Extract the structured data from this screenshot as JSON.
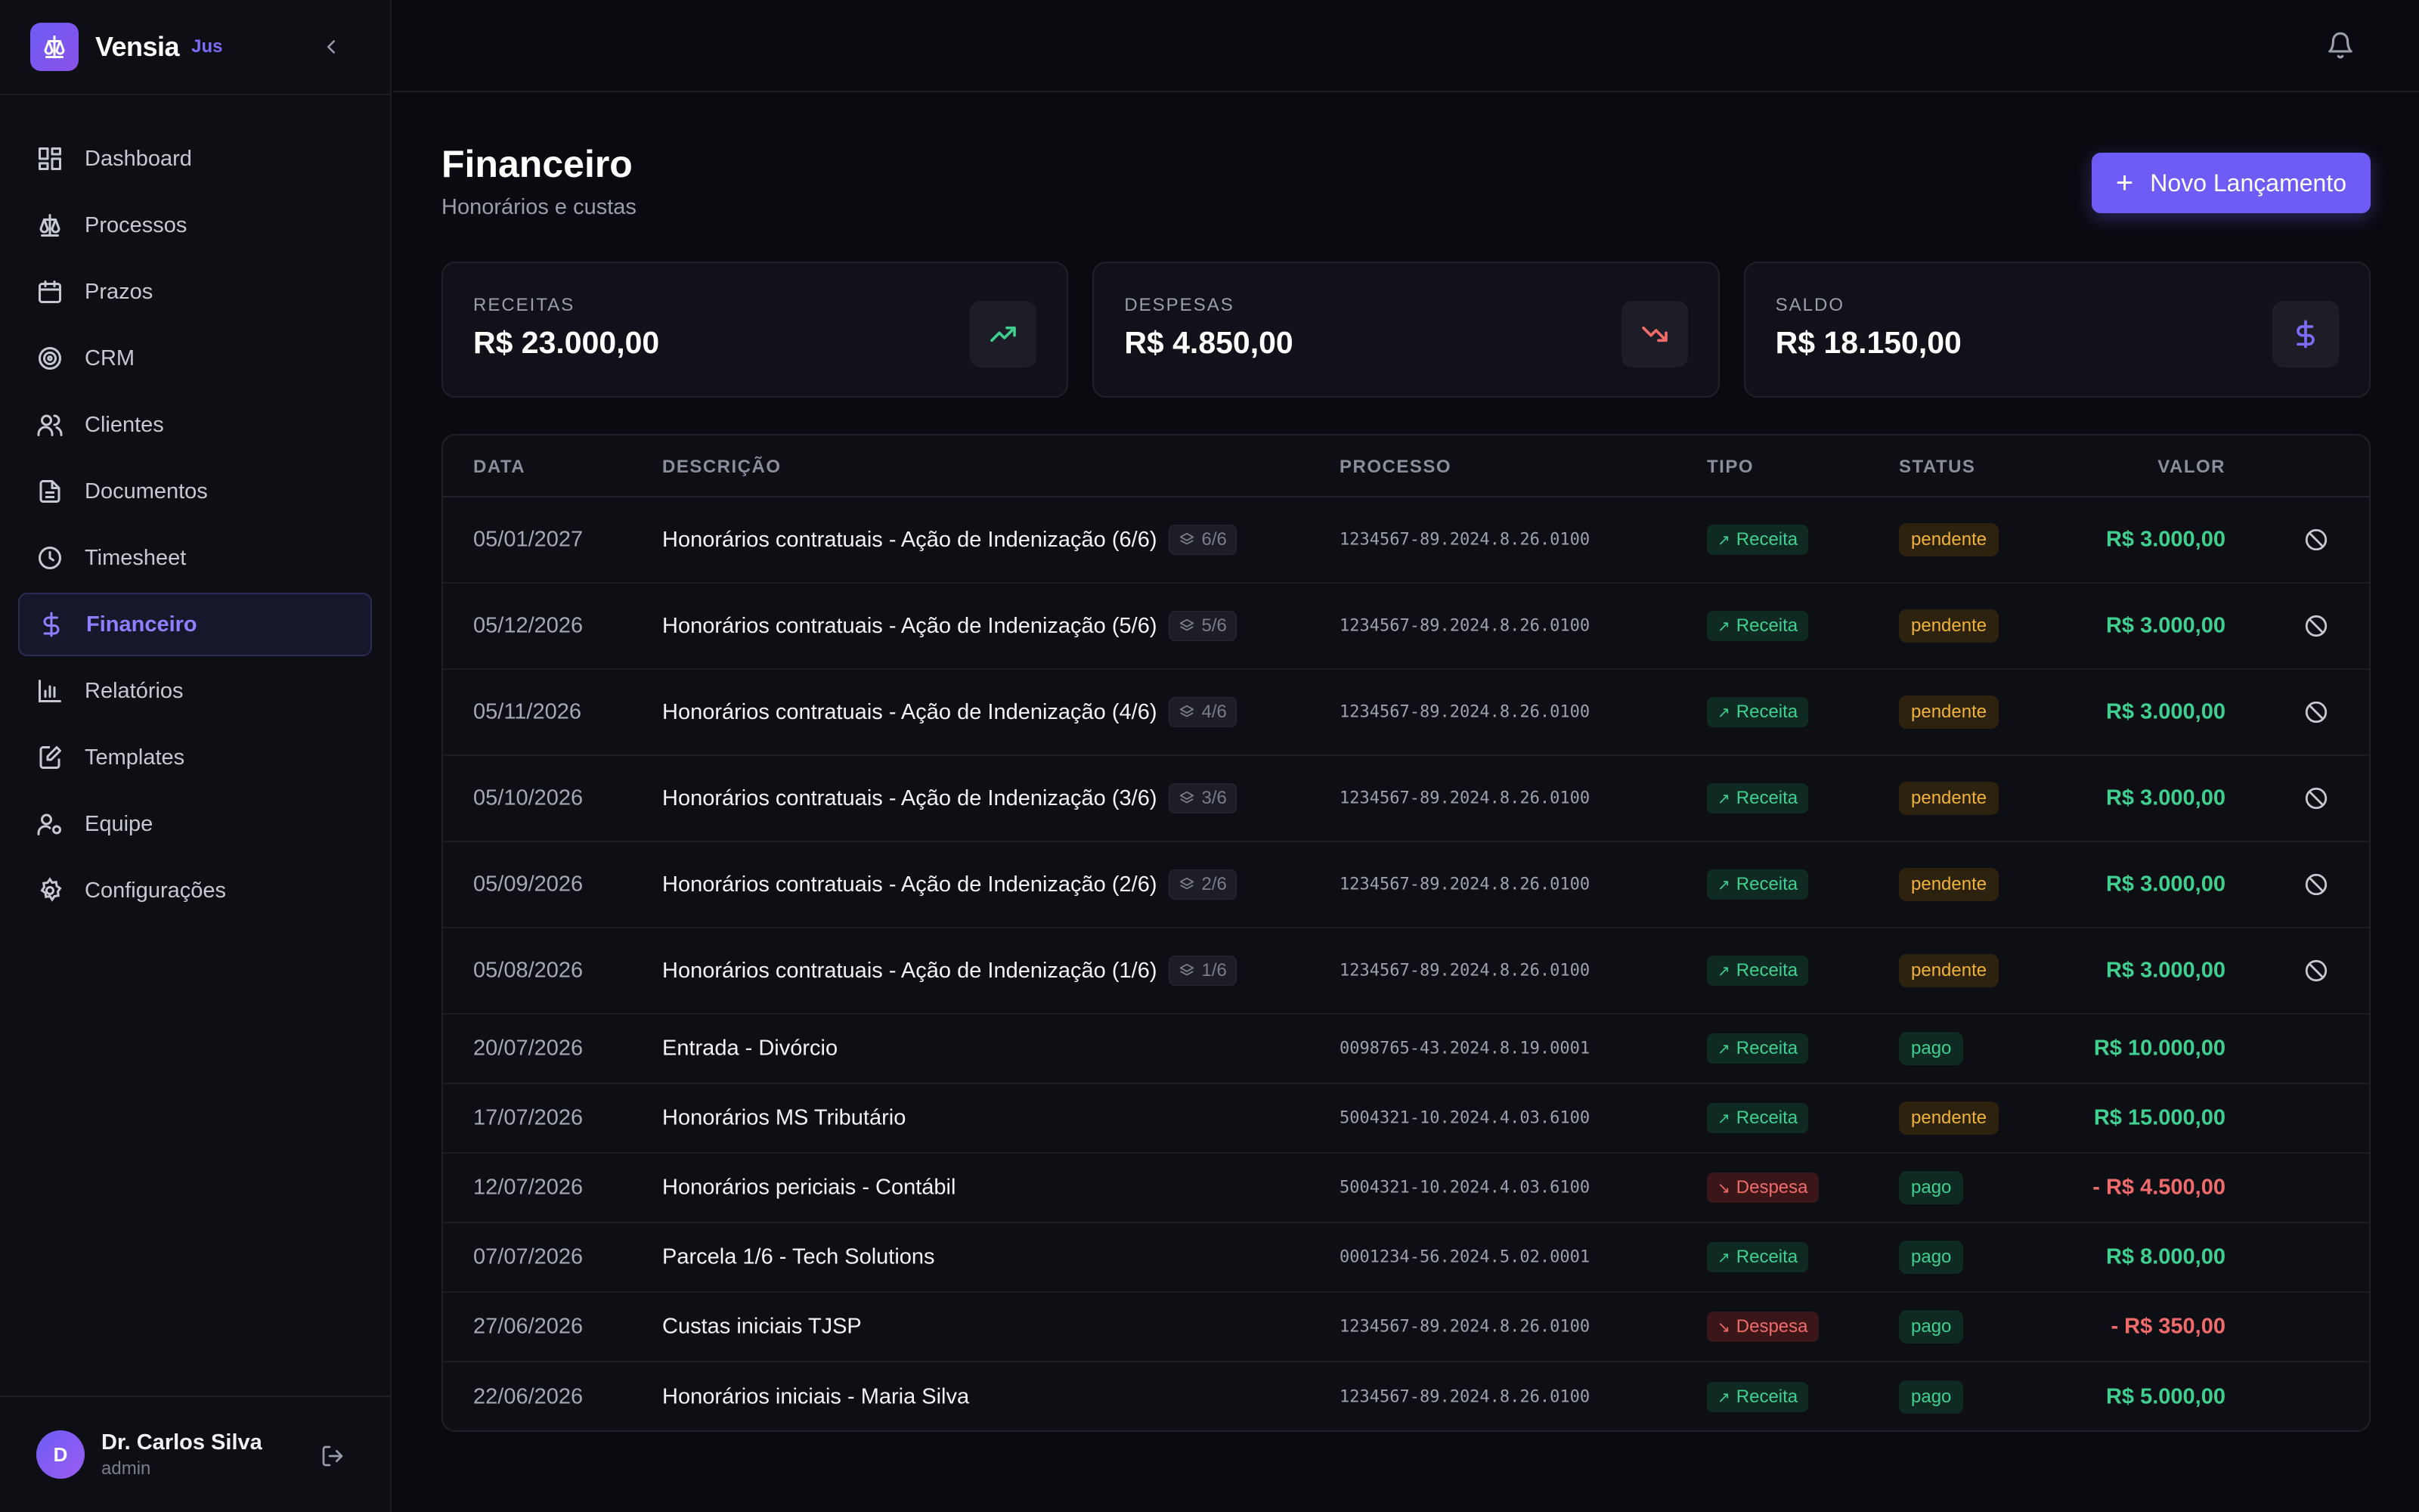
{
  "app": {
    "name": "Vensia",
    "tag": "Jus"
  },
  "sidebar": {
    "items": [
      {
        "label": "Dashboard",
        "icon": "dashboard-icon",
        "active": false
      },
      {
        "label": "Processos",
        "icon": "scale-icon",
        "active": false
      },
      {
        "label": "Prazos",
        "icon": "calendar-icon",
        "active": false
      },
      {
        "label": "CRM",
        "icon": "target-icon",
        "active": false
      },
      {
        "label": "Clientes",
        "icon": "users-icon",
        "active": false
      },
      {
        "label": "Documentos",
        "icon": "document-icon",
        "active": false
      },
      {
        "label": "Timesheet",
        "icon": "clock-icon",
        "active": false
      },
      {
        "label": "Financeiro",
        "icon": "dollar-icon",
        "active": true
      },
      {
        "label": "Relatórios",
        "icon": "bar-chart-icon",
        "active": false
      },
      {
        "label": "Templates",
        "icon": "edit-document-icon",
        "active": false
      },
      {
        "label": "Equipe",
        "icon": "user-gear-icon",
        "active": false
      },
      {
        "label": "Configurações",
        "icon": "gear-icon",
        "active": false
      }
    ]
  },
  "user": {
    "initial": "D",
    "name": "Dr. Carlos Silva",
    "role": "admin"
  },
  "page": {
    "title": "Financeiro",
    "subtitle": "Honorários e custas",
    "new_button": "Novo Lançamento"
  },
  "stats": [
    {
      "label": "RECEITAS",
      "value": "R$ 23.000,00",
      "icon": "trending-up-icon",
      "color": "#3fcf8e"
    },
    {
      "label": "DESPESAS",
      "value": "R$ 4.850,00",
      "icon": "trending-down-icon",
      "color": "#f26b6b"
    },
    {
      "label": "SALDO",
      "value": "R$ 18.150,00",
      "icon": "dollar-icon",
      "color": "#7c6cf6"
    }
  ],
  "table": {
    "headers": {
      "data": "DATA",
      "descricao": "DESCRIÇÃO",
      "processo": "PROCESSO",
      "tipo": "TIPO",
      "status": "STATUS",
      "valor": "VALOR"
    },
    "rows": [
      {
        "date": "05/01/2027",
        "desc": "Honorários contratuais - Ação de Indenização (6/6)",
        "installment": "6/6",
        "proc": "1234567-89.2024.8.26.0100",
        "tipo": "Receita",
        "status": "pendente",
        "valor": "R$ 3.000,00",
        "cancel": true
      },
      {
        "date": "05/12/2026",
        "desc": "Honorários contratuais - Ação de Indenização (5/6)",
        "installment": "5/6",
        "proc": "1234567-89.2024.8.26.0100",
        "tipo": "Receita",
        "status": "pendente",
        "valor": "R$ 3.000,00",
        "cancel": true
      },
      {
        "date": "05/11/2026",
        "desc": "Honorários contratuais - Ação de Indenização (4/6)",
        "installment": "4/6",
        "proc": "1234567-89.2024.8.26.0100",
        "tipo": "Receita",
        "status": "pendente",
        "valor": "R$ 3.000,00",
        "cancel": true
      },
      {
        "date": "05/10/2026",
        "desc": "Honorários contratuais - Ação de Indenização (3/6)",
        "installment": "3/6",
        "proc": "1234567-89.2024.8.26.0100",
        "tipo": "Receita",
        "status": "pendente",
        "valor": "R$ 3.000,00",
        "cancel": true
      },
      {
        "date": "05/09/2026",
        "desc": "Honorários contratuais - Ação de Indenização (2/6)",
        "installment": "2/6",
        "proc": "1234567-89.2024.8.26.0100",
        "tipo": "Receita",
        "status": "pendente",
        "valor": "R$ 3.000,00",
        "cancel": true
      },
      {
        "date": "05/08/2026",
        "desc": "Honorários contratuais - Ação de Indenização (1/6)",
        "installment": "1/6",
        "proc": "1234567-89.2024.8.26.0100",
        "tipo": "Receita",
        "status": "pendente",
        "valor": "R$ 3.000,00",
        "cancel": true
      },
      {
        "date": "20/07/2026",
        "desc": "Entrada - Divórcio",
        "installment": "",
        "proc": "0098765-43.2024.8.19.0001",
        "tipo": "Receita",
        "status": "pago",
        "valor": "R$ 10.000,00",
        "cancel": false
      },
      {
        "date": "17/07/2026",
        "desc": "Honorários MS Tributário",
        "installment": "",
        "proc": "5004321-10.2024.4.03.6100",
        "tipo": "Receita",
        "status": "pendente",
        "valor": "R$ 15.000,00",
        "cancel": false
      },
      {
        "date": "12/07/2026",
        "desc": "Honorários periciais - Contábil",
        "installment": "",
        "proc": "5004321-10.2024.4.03.6100",
        "tipo": "Despesa",
        "status": "pago",
        "valor": "- R$ 4.500,00",
        "cancel": false
      },
      {
        "date": "07/07/2026",
        "desc": "Parcela 1/6 - Tech Solutions",
        "installment": "",
        "proc": "0001234-56.2024.5.02.0001",
        "tipo": "Receita",
        "status": "pago",
        "valor": "R$ 8.000,00",
        "cancel": false
      },
      {
        "date": "27/06/2026",
        "desc": "Custas iniciais TJSP",
        "installment": "",
        "proc": "1234567-89.2024.8.26.0100",
        "tipo": "Despesa",
        "status": "pago",
        "valor": "- R$ 350,00",
        "cancel": false
      },
      {
        "date": "22/06/2026",
        "desc": "Honorários iniciais - Maria Silva",
        "installment": "",
        "proc": "1234567-89.2024.8.26.0100",
        "tipo": "Receita",
        "status": "pago",
        "valor": "R$ 5.000,00",
        "cancel": false
      }
    ]
  }
}
